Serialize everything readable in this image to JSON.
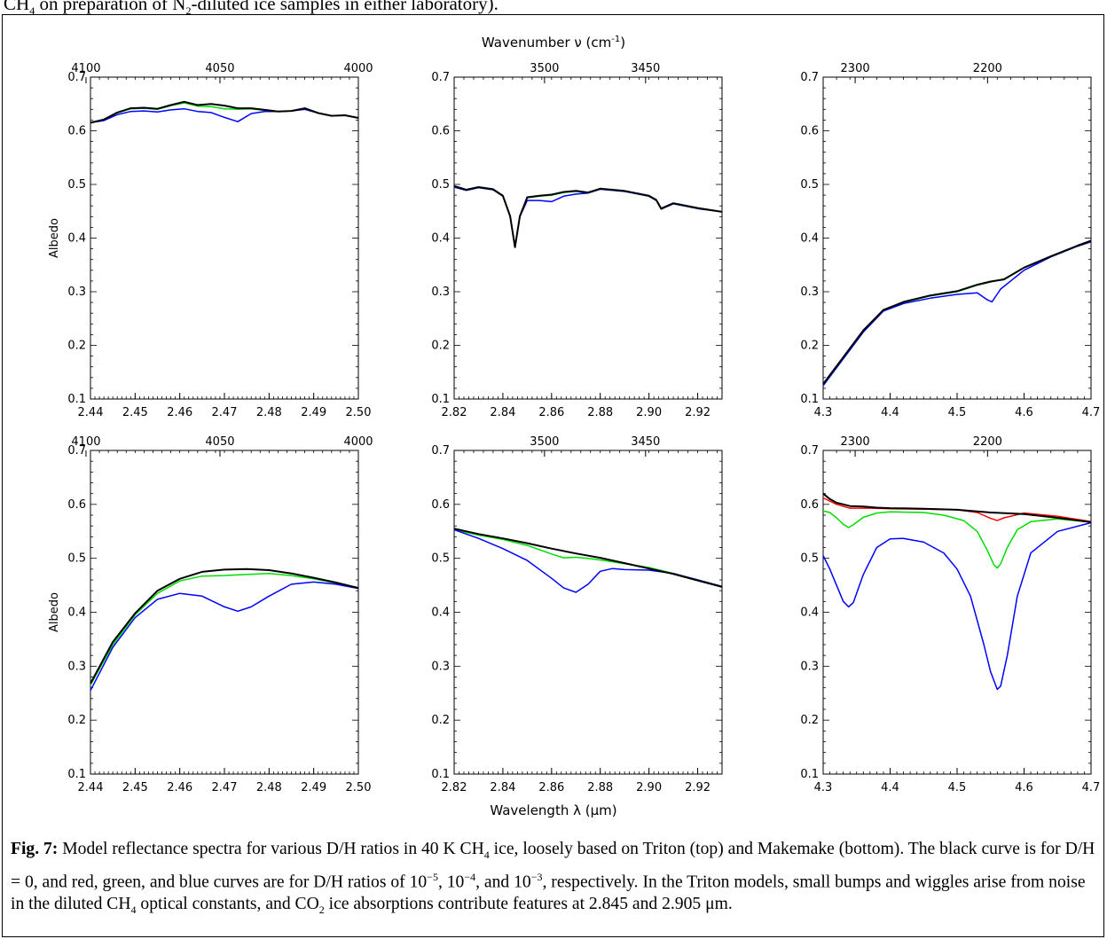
{
  "top_fragment": {
    "pre": "CH",
    "sub1": "4",
    "mid": " on preparation of N",
    "sub2": "2",
    "post": "-diluted ice samples in either laboratory)."
  },
  "figure": {
    "top_axis_title": "Wavenumber ν (cm",
    "top_axis_title_sup": "-1",
    "top_axis_title_end": ")",
    "bottom_axis_title": "Wavelength λ (μm)",
    "y_label": "Albedo"
  },
  "caption": {
    "label": "Fig. 7:",
    "t1": " Model reflectance spectra for various D/H ratios in 40 K CH",
    "s1": "4",
    "t2": " ice, loosely based on Triton (top) and Make­make (bottom).  The black curve is for D/H = 0, and red, green, and blue curves are for D/H ratios of 10",
    "p1": "−5",
    "t3": ", 10",
    "p2": "−4",
    "t4": ", and 10",
    "p3": "−3",
    "t5": ", respectively.  In the Triton models, small bumps and wiggles arise from noise in the diluted CH",
    "s2": "4",
    "t6": " optical constants, and CO",
    "s3": "2",
    "t7": " ice absorptions contribute features at 2.845 and 2.905 μm."
  },
  "colors": {
    "d0": "#000000",
    "d5": "#ff0000",
    "d4": "#00dd00",
    "d3": "#0000ff"
  },
  "chart_data": [
    {
      "type": "line",
      "id": "triton-2.4",
      "xlim": [
        2.44,
        2.5
      ],
      "ylim": [
        0.1,
        0.7
      ],
      "x_ticks": [
        "2.44",
        "2.45",
        "2.46",
        "2.47",
        "2.48",
        "2.49",
        "2.50"
      ],
      "y_ticks": [
        "0.1",
        "0.2",
        "0.3",
        "0.4",
        "0.5",
        "0.6",
        "0.7"
      ],
      "top_ticks": [
        [
          "4100",
          2.439
        ],
        [
          "4050",
          2.469
        ],
        [
          "4000",
          2.5
        ]
      ],
      "ylabel": "Albedo",
      "series": [
        {
          "color": "d4",
          "x": [
            2.44,
            2.443,
            2.446,
            2.449,
            2.452,
            2.455,
            2.458,
            2.461,
            2.464,
            2.467,
            2.47,
            2.473,
            2.476,
            2.479,
            2.482,
            2.485,
            2.488,
            2.491,
            2.494,
            2.497,
            2.5
          ],
          "y": [
            0.615,
            0.621,
            0.633,
            0.641,
            0.642,
            0.64,
            0.647,
            0.652,
            0.646,
            0.645,
            0.641,
            0.64,
            0.641,
            0.638,
            0.636,
            0.637,
            0.64,
            0.633,
            0.628,
            0.629,
            0.624
          ]
        },
        {
          "color": "d3",
          "x": [
            2.44,
            2.443,
            2.446,
            2.449,
            2.452,
            2.455,
            2.458,
            2.461,
            2.464,
            2.467,
            2.47,
            2.473,
            2.476,
            2.479,
            2.482,
            2.485,
            2.488,
            2.491,
            2.494,
            2.497,
            2.5
          ],
          "y": [
            0.615,
            0.619,
            0.63,
            0.636,
            0.637,
            0.635,
            0.639,
            0.641,
            0.636,
            0.634,
            0.625,
            0.617,
            0.632,
            0.636,
            0.636,
            0.637,
            0.64,
            0.633,
            0.628,
            0.629,
            0.624
          ]
        },
        {
          "color": "d0",
          "x": [
            2.44,
            2.443,
            2.446,
            2.449,
            2.452,
            2.455,
            2.458,
            2.461,
            2.464,
            2.467,
            2.47,
            2.473,
            2.476,
            2.479,
            2.482,
            2.485,
            2.488,
            2.491,
            2.494,
            2.497,
            2.5
          ],
          "y": [
            0.615,
            0.621,
            0.634,
            0.642,
            0.643,
            0.641,
            0.648,
            0.654,
            0.648,
            0.65,
            0.647,
            0.642,
            0.642,
            0.639,
            0.636,
            0.637,
            0.642,
            0.633,
            0.628,
            0.629,
            0.624
          ]
        }
      ]
    },
    {
      "type": "line",
      "id": "triton-2.8",
      "xlim": [
        2.82,
        2.93
      ],
      "ylim": [
        0.1,
        0.7
      ],
      "x_ticks": [
        "2.82",
        "2.84",
        "2.86",
        "2.88",
        "2.90",
        "2.92"
      ],
      "x_tick_values": [
        2.82,
        2.84,
        2.86,
        2.88,
        2.9,
        2.92
      ],
      "y_ticks": [
        "0.1",
        "0.2",
        "0.3",
        "0.4",
        "0.5",
        "0.6",
        "0.7"
      ],
      "top_ticks": [
        [
          "3500",
          2.8571
        ],
        [
          "3450",
          2.8986
        ]
      ],
      "series": [
        {
          "color": "d4",
          "x": [
            2.82,
            2.825,
            2.83,
            2.836,
            2.84,
            2.843,
            2.845,
            2.847,
            2.85,
            2.855,
            2.86,
            2.865,
            2.87,
            2.875,
            2.88,
            2.89,
            2.9,
            2.903,
            2.905,
            2.91,
            2.92,
            2.93
          ],
          "y": [
            0.495,
            0.489,
            0.494,
            0.49,
            0.478,
            0.44,
            0.385,
            0.44,
            0.475,
            0.478,
            0.48,
            0.485,
            0.487,
            0.484,
            0.491,
            0.487,
            0.478,
            0.47,
            0.454,
            0.464,
            0.455,
            0.449
          ]
        },
        {
          "color": "d3",
          "x": [
            2.82,
            2.825,
            2.83,
            2.836,
            2.84,
            2.843,
            2.845,
            2.847,
            2.85,
            2.855,
            2.86,
            2.865,
            2.87,
            2.875,
            2.88,
            2.89,
            2.9,
            2.903,
            2.905,
            2.91,
            2.92,
            2.93
          ],
          "y": [
            0.495,
            0.489,
            0.494,
            0.49,
            0.478,
            0.44,
            0.385,
            0.44,
            0.47,
            0.47,
            0.468,
            0.478,
            0.482,
            0.484,
            0.491,
            0.487,
            0.478,
            0.47,
            0.454,
            0.464,
            0.455,
            0.449
          ]
        },
        {
          "color": "d0",
          "x": [
            2.82,
            2.825,
            2.83,
            2.836,
            2.84,
            2.843,
            2.845,
            2.847,
            2.85,
            2.855,
            2.86,
            2.865,
            2.87,
            2.875,
            2.88,
            2.89,
            2.9,
            2.903,
            2.905,
            2.91,
            2.92,
            2.93
          ],
          "y": [
            0.497,
            0.49,
            0.495,
            0.491,
            0.479,
            0.441,
            0.383,
            0.441,
            0.476,
            0.479,
            0.481,
            0.486,
            0.488,
            0.485,
            0.492,
            0.488,
            0.479,
            0.471,
            0.455,
            0.465,
            0.456,
            0.449
          ]
        }
      ]
    },
    {
      "type": "line",
      "id": "triton-4.5",
      "xlim": [
        4.3,
        4.7
      ],
      "ylim": [
        0.1,
        0.7
      ],
      "x_ticks": [
        "4.3",
        "4.4",
        "4.5",
        "4.6",
        "4.7"
      ],
      "x_tick_values": [
        4.3,
        4.4,
        4.5,
        4.6,
        4.7
      ],
      "y_ticks": [
        "0.1",
        "0.2",
        "0.3",
        "0.4",
        "0.5",
        "0.6",
        "0.7"
      ],
      "top_ticks": [
        [
          "2300",
          4.3478
        ],
        [
          "2200",
          4.5455
        ]
      ],
      "series": [
        {
          "color": "d4",
          "x": [
            4.3,
            4.33,
            4.36,
            4.39,
            4.42,
            4.46,
            4.5,
            4.53,
            4.55,
            4.57,
            4.6,
            4.64,
            4.68,
            4.7
          ],
          "y": [
            0.125,
            0.175,
            0.225,
            0.265,
            0.28,
            0.292,
            0.3,
            0.312,
            0.318,
            0.324,
            0.345,
            0.365,
            0.385,
            0.393
          ]
        },
        {
          "color": "d3",
          "x": [
            4.3,
            4.33,
            4.36,
            4.39,
            4.42,
            4.46,
            4.5,
            4.53,
            4.545,
            4.552,
            4.565,
            4.58,
            4.6,
            4.64,
            4.68,
            4.7
          ],
          "y": [
            0.125,
            0.175,
            0.225,
            0.264,
            0.278,
            0.288,
            0.295,
            0.298,
            0.285,
            0.281,
            0.305,
            0.32,
            0.34,
            0.365,
            0.385,
            0.393
          ]
        },
        {
          "color": "d0",
          "x": [
            4.3,
            4.33,
            4.36,
            4.39,
            4.42,
            4.46,
            4.5,
            4.53,
            4.55,
            4.57,
            4.6,
            4.64,
            4.68,
            4.7
          ],
          "y": [
            0.128,
            0.178,
            0.228,
            0.266,
            0.281,
            0.293,
            0.301,
            0.313,
            0.319,
            0.323,
            0.345,
            0.366,
            0.386,
            0.395
          ]
        }
      ]
    },
    {
      "type": "line",
      "id": "makemake-2.4",
      "xlim": [
        2.44,
        2.5
      ],
      "ylim": [
        0.1,
        0.7
      ],
      "x_ticks": [
        "2.44",
        "2.45",
        "2.46",
        "2.47",
        "2.48",
        "2.49",
        "2.50"
      ],
      "y_ticks": [
        "0.1",
        "0.2",
        "0.3",
        "0.4",
        "0.5",
        "0.6",
        "0.7"
      ],
      "top_ticks": [
        [
          "4100",
          2.439
        ],
        [
          "4050",
          2.469
        ],
        [
          "4000",
          2.5
        ]
      ],
      "ylabel": "Albedo",
      "series": [
        {
          "color": "d4",
          "x": [
            2.44,
            2.445,
            2.45,
            2.455,
            2.46,
            2.465,
            2.47,
            2.475,
            2.48,
            2.485,
            2.49,
            2.495,
            2.5
          ],
          "y": [
            0.265,
            0.34,
            0.395,
            0.435,
            0.458,
            0.467,
            0.468,
            0.47,
            0.472,
            0.468,
            0.462,
            0.454,
            0.444
          ]
        },
        {
          "color": "d3",
          "x": [
            2.44,
            2.445,
            2.45,
            2.455,
            2.46,
            2.465,
            2.47,
            2.473,
            2.476,
            2.48,
            2.485,
            2.49,
            2.495,
            2.5
          ],
          "y": [
            0.255,
            0.335,
            0.39,
            0.424,
            0.435,
            0.43,
            0.41,
            0.402,
            0.41,
            0.43,
            0.452,
            0.456,
            0.452,
            0.444
          ]
        },
        {
          "color": "d0",
          "x": [
            2.44,
            2.445,
            2.45,
            2.455,
            2.46,
            2.465,
            2.47,
            2.475,
            2.48,
            2.485,
            2.49,
            2.495,
            2.5
          ],
          "y": [
            0.268,
            0.345,
            0.398,
            0.44,
            0.462,
            0.475,
            0.479,
            0.48,
            0.478,
            0.472,
            0.464,
            0.455,
            0.445
          ]
        }
      ]
    },
    {
      "type": "line",
      "id": "makemake-2.8",
      "xlim": [
        2.82,
        2.93
      ],
      "ylim": [
        0.1,
        0.7
      ],
      "x_ticks": [
        "2.82",
        "2.84",
        "2.86",
        "2.88",
        "2.90",
        "2.92"
      ],
      "x_tick_values": [
        2.82,
        2.84,
        2.86,
        2.88,
        2.9,
        2.92
      ],
      "y_ticks": [
        "0.1",
        "0.2",
        "0.3",
        "0.4",
        "0.5",
        "0.6",
        "0.7"
      ],
      "top_ticks": [
        [
          "3500",
          2.8571
        ],
        [
          "3450",
          2.8986
        ]
      ],
      "series": [
        {
          "color": "d4",
          "x": [
            2.82,
            2.83,
            2.84,
            2.85,
            2.86,
            2.865,
            2.87,
            2.875,
            2.88,
            2.89,
            2.9,
            2.91,
            2.92,
            2.93
          ],
          "y": [
            0.553,
            0.543,
            0.535,
            0.524,
            0.508,
            0.501,
            0.502,
            0.5,
            0.497,
            0.49,
            0.483,
            0.472,
            0.46,
            0.448
          ]
        },
        {
          "color": "d3",
          "x": [
            2.82,
            2.83,
            2.84,
            2.85,
            2.86,
            2.865,
            2.87,
            2.875,
            2.88,
            2.885,
            2.89,
            2.9,
            2.91,
            2.92,
            2.93
          ],
          "y": [
            0.553,
            0.537,
            0.518,
            0.496,
            0.463,
            0.445,
            0.437,
            0.452,
            0.476,
            0.481,
            0.479,
            0.478,
            0.472,
            0.46,
            0.448
          ]
        },
        {
          "color": "d0",
          "x": [
            2.82,
            2.83,
            2.84,
            2.85,
            2.86,
            2.87,
            2.88,
            2.89,
            2.9,
            2.91,
            2.92,
            2.93
          ],
          "y": [
            0.555,
            0.545,
            0.537,
            0.528,
            0.518,
            0.509,
            0.501,
            0.491,
            0.481,
            0.471,
            0.459,
            0.447
          ]
        }
      ]
    },
    {
      "type": "line",
      "id": "makemake-4.5",
      "xlim": [
        4.3,
        4.7
      ],
      "ylim": [
        0.1,
        0.7
      ],
      "x_ticks": [
        "4.3",
        "4.4",
        "4.5",
        "4.6",
        "4.7"
      ],
      "x_tick_values": [
        4.3,
        4.4,
        4.5,
        4.6,
        4.7
      ],
      "y_ticks": [
        "0.1",
        "0.2",
        "0.3",
        "0.4",
        "0.5",
        "0.6",
        "0.7"
      ],
      "top_ticks": [
        [
          "2300",
          4.3478
        ],
        [
          "2200",
          4.5455
        ]
      ],
      "series": [
        {
          "color": "d5",
          "x": [
            4.3,
            4.32,
            4.34,
            4.37,
            4.4,
            4.45,
            4.5,
            4.53,
            4.55,
            4.56,
            4.57,
            4.6,
            4.65,
            4.7
          ],
          "y": [
            0.612,
            0.6,
            0.593,
            0.593,
            0.592,
            0.591,
            0.59,
            0.585,
            0.574,
            0.57,
            0.575,
            0.584,
            0.578,
            0.568
          ]
        },
        {
          "color": "d4",
          "x": [
            4.3,
            4.31,
            4.32,
            4.33,
            4.338,
            4.345,
            4.36,
            4.38,
            4.4,
            4.45,
            4.48,
            4.51,
            4.53,
            4.545,
            4.555,
            4.56,
            4.565,
            4.575,
            4.59,
            4.61,
            4.65,
            4.7
          ],
          "y": [
            0.588,
            0.585,
            0.575,
            0.563,
            0.557,
            0.562,
            0.576,
            0.584,
            0.586,
            0.585,
            0.58,
            0.57,
            0.55,
            0.515,
            0.488,
            0.482,
            0.49,
            0.52,
            0.553,
            0.568,
            0.573,
            0.567
          ]
        },
        {
          "color": "d3",
          "x": [
            4.3,
            4.31,
            4.32,
            4.33,
            4.338,
            4.345,
            4.36,
            4.38,
            4.4,
            4.42,
            4.45,
            4.48,
            4.5,
            4.52,
            4.54,
            4.55,
            4.56,
            4.565,
            4.575,
            4.59,
            4.61,
            4.65,
            4.7
          ],
          "y": [
            0.505,
            0.48,
            0.45,
            0.42,
            0.41,
            0.418,
            0.47,
            0.52,
            0.536,
            0.537,
            0.53,
            0.51,
            0.48,
            0.43,
            0.34,
            0.29,
            0.257,
            0.263,
            0.32,
            0.43,
            0.51,
            0.55,
            0.566
          ]
        },
        {
          "color": "d0",
          "x": [
            4.3,
            4.31,
            4.32,
            4.33,
            4.34,
            4.36,
            4.38,
            4.4,
            4.45,
            4.5,
            4.55,
            4.6,
            4.65,
            4.7
          ],
          "y": [
            0.62,
            0.61,
            0.603,
            0.6,
            0.597,
            0.596,
            0.594,
            0.593,
            0.592,
            0.59,
            0.585,
            0.582,
            0.575,
            0.567
          ]
        }
      ]
    }
  ]
}
